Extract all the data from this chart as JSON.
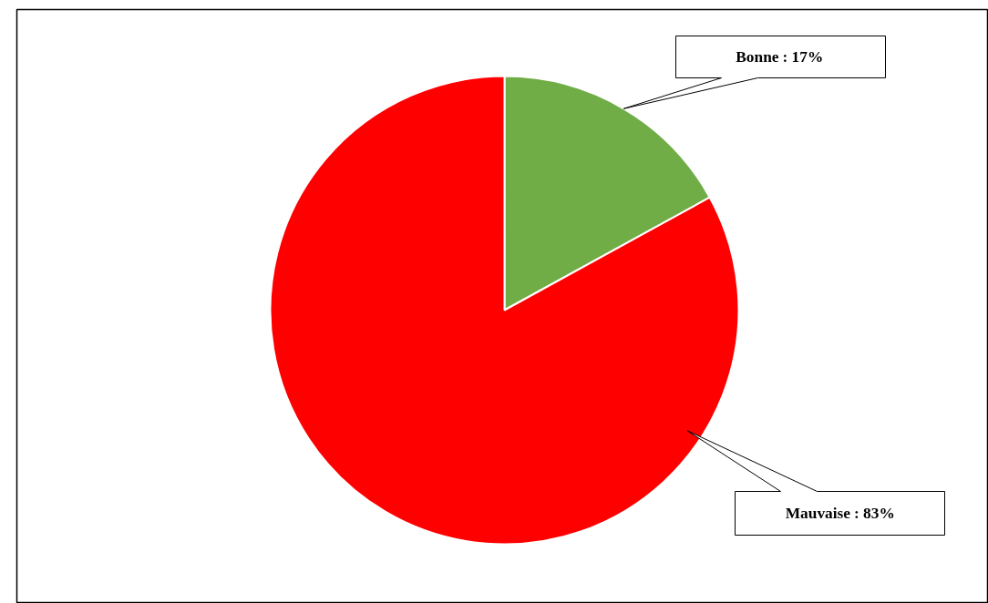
{
  "chart_data": {
    "type": "pie",
    "categories": [
      "Bonne",
      "Mauvaise"
    ],
    "values": [
      17,
      83
    ],
    "colors": [
      "#70ad47",
      "#ff0000"
    ],
    "value_labels": [
      ": 17%",
      ": 83%"
    ],
    "legend": false
  }
}
